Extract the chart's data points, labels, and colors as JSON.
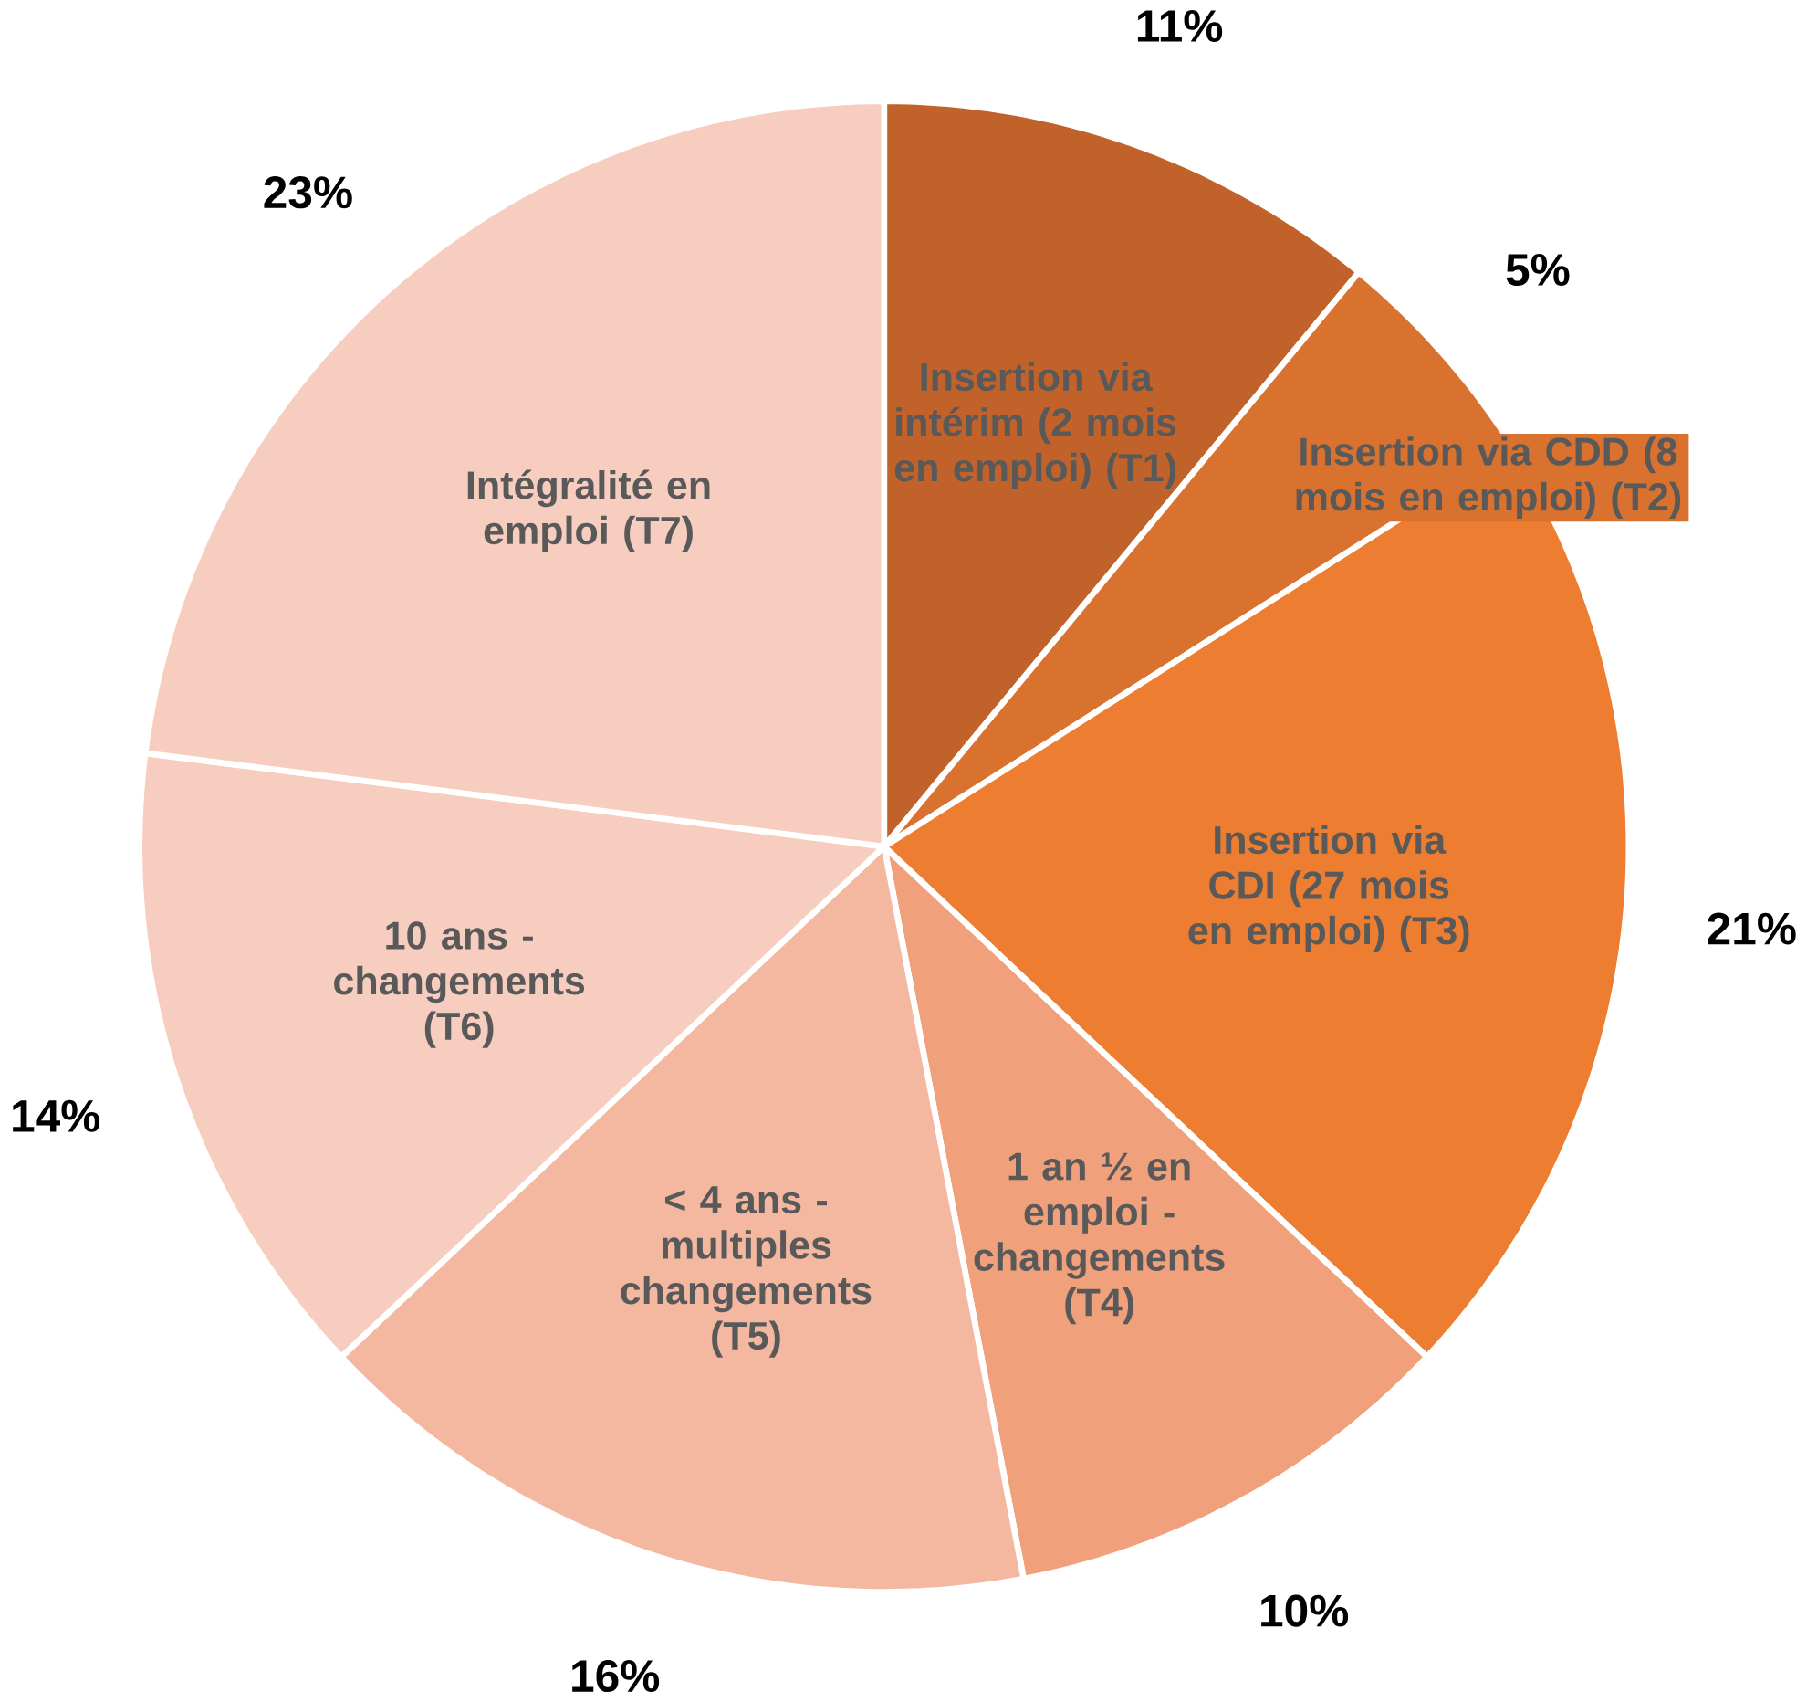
{
  "chart_data": {
    "type": "pie",
    "categories": [
      "Insertion via intérim (2 mois en emploi) (T1)",
      "Insertion via CDD (8 mois en emploi) (T2)",
      "Insertion via CDI (27 mois en emploi) (T3)",
      "1 an ½ en emploi - changements (T4)",
      "< 4 ans - multiples changements (T5)",
      "10 ans - changements (T6)",
      "Intégralité en emploi (T7)"
    ],
    "values": [
      11,
      5,
      21,
      10,
      16,
      14,
      23
    ],
    "colors": [
      "#c0622a",
      "#d9712f",
      "#ed7d31",
      "#f0a07a",
      "#f4b8a0",
      "#f7cdbf",
      "#f7cdbf"
    ],
    "value_labels": [
      "11%",
      "5%",
      "21%",
      "10%",
      "16%",
      "14%",
      "23%"
    ]
  }
}
